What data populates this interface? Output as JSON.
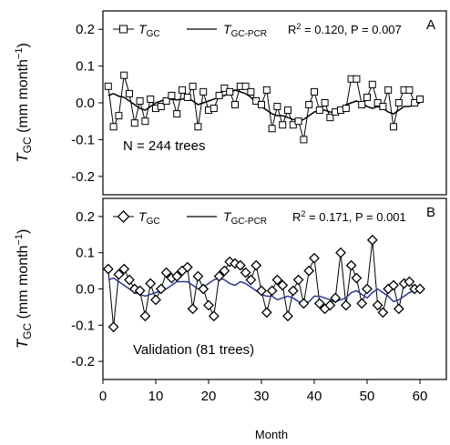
{
  "chart_data": {
    "type": "line",
    "xlabel": "Month",
    "x_ticks": [
      "0",
      "10",
      "20",
      "30",
      "40",
      "50",
      "60"
    ],
    "xlim": [
      0,
      65
    ],
    "panels": [
      {
        "panel_label": "A",
        "ylabel_main": "T",
        "ylabel_sub": "GC",
        "ylabel_units": "(mm month",
        "ylabel_exp": "−1",
        "ylabel_close": ")",
        "y_ticks": [
          "0.2",
          "0.1",
          "0.0",
          "-0.1",
          "-0.2"
        ],
        "ylim": [
          -0.25,
          0.25
        ],
        "legend_marker_main": "T",
        "legend_marker_sub": "GC",
        "legend_line_main": "T",
        "legend_line_sub": "GC-PCR",
        "stats_r": "R",
        "stats_r_exp": "2",
        "stats_rest": " = 0.120, P = 0.007",
        "annotation": "N = 244 trees",
        "line_color": "#000000",
        "series": [
          {
            "name": "TGC",
            "marker": "square",
            "x": [
              1,
              2,
              3,
              4,
              5,
              6,
              7,
              8,
              9,
              10,
              11,
              12,
              13,
              14,
              15,
              16,
              17,
              18,
              19,
              20,
              21,
              22,
              23,
              24,
              25,
              26,
              27,
              28,
              29,
              30,
              31,
              32,
              33,
              34,
              35,
              36,
              37,
              38,
              39,
              40,
              41,
              42,
              43,
              44,
              45,
              46,
              47,
              48,
              49,
              50,
              51,
              52,
              53,
              54,
              55,
              56,
              57,
              58,
              59,
              60
            ],
            "values": [
              0.045,
              -0.065,
              -0.035,
              0.075,
              0.025,
              -0.055,
              0.005,
              -0.05,
              0.01,
              -0.015,
              -0.01,
              0.005,
              0.02,
              -0.03,
              0.035,
              0.015,
              0.045,
              -0.065,
              0.03,
              -0.02,
              -0.015,
              0.02,
              0.04,
              0.03,
              -0.005,
              0.045,
              0.045,
              0.03,
              0.005,
              -0.005,
              0.035,
              -0.07,
              -0.01,
              -0.06,
              -0.02,
              -0.06,
              -0.05,
              -0.1,
              -0.005,
              0.03,
              -0.02,
              0.0,
              -0.04,
              -0.025,
              -0.02,
              -0.015,
              0.065,
              0.065,
              -0.005,
              0.015,
              0.05,
              0.0,
              -0.01,
              0.035,
              -0.065,
              0.0,
              0.035,
              0.035,
              0.0,
              0.01
            ]
          },
          {
            "name": "TGC-PCR",
            "x": [
              1,
              2,
              3,
              4,
              5,
              6,
              7,
              8,
              9,
              10,
              11,
              12,
              13,
              14,
              15,
              16,
              17,
              18,
              19,
              20,
              21,
              22,
              23,
              24,
              25,
              26,
              27,
              28,
              29,
              30,
              31,
              32,
              33,
              34,
              35,
              36,
              37,
              38,
              39,
              40,
              41,
              42,
              43,
              44,
              45,
              46,
              47,
              48,
              49,
              50,
              51,
              52,
              53,
              54,
              55,
              56,
              57,
              58,
              59,
              60
            ],
            "values": [
              0.02,
              0.025,
              0.018,
              0.015,
              0.005,
              -0.005,
              -0.015,
              -0.02,
              -0.01,
              0.0,
              0.005,
              0.01,
              0.01,
              0.008,
              0.01,
              0.015,
              0.005,
              -0.005,
              0.0,
              0.005,
              0.01,
              0.015,
              0.02,
              0.025,
              0.035,
              0.03,
              0.025,
              0.015,
              0.0,
              -0.01,
              -0.02,
              -0.03,
              -0.035,
              -0.035,
              -0.04,
              -0.045,
              -0.05,
              -0.045,
              -0.035,
              -0.025,
              -0.02,
              -0.02,
              -0.025,
              -0.025,
              -0.02,
              -0.005,
              0.0,
              0.005,
              0.0,
              -0.01,
              -0.015,
              -0.01,
              -0.015,
              -0.025,
              -0.03,
              -0.02,
              -0.01,
              -0.01,
              -0.005,
              0.0
            ]
          }
        ]
      },
      {
        "panel_label": "B",
        "ylabel_main": "T",
        "ylabel_sub": "GC",
        "ylabel_units": "(mm month",
        "ylabel_exp": "−1",
        "ylabel_close": ")",
        "y_ticks": [
          "0.2",
          "0.1",
          "0.0",
          "-0.1",
          "-0.2"
        ],
        "ylim": [
          -0.25,
          0.25
        ],
        "legend_marker_main": "T",
        "legend_marker_sub": "GC",
        "legend_line_main": "T",
        "legend_line_sub": "GC-PCR",
        "stats_r": "R",
        "stats_r_exp": "2",
        "stats_rest": " = 0.171, P = 0.001",
        "annotation": "Validation (81 trees)",
        "line_color": "#2b3990",
        "series": [
          {
            "name": "TGC",
            "marker": "diamond",
            "x": [
              1,
              2,
              3,
              4,
              5,
              6,
              7,
              8,
              9,
              10,
              11,
              12,
              13,
              14,
              15,
              16,
              17,
              18,
              19,
              20,
              21,
              22,
              23,
              24,
              25,
              26,
              27,
              28,
              29,
              30,
              31,
              32,
              33,
              34,
              35,
              36,
              37,
              38,
              39,
              40,
              41,
              42,
              43,
              44,
              45,
              46,
              47,
              48,
              49,
              50,
              51,
              52,
              53,
              54,
              55,
              56,
              57,
              58,
              59,
              60
            ],
            "values": [
              0.055,
              -0.105,
              0.04,
              0.055,
              0.025,
              0.0,
              -0.005,
              -0.075,
              0.015,
              -0.03,
              0.0,
              0.045,
              0.03,
              0.035,
              0.05,
              0.06,
              -0.055,
              0.035,
              0.0,
              -0.045,
              -0.075,
              0.035,
              0.05,
              0.075,
              0.07,
              0.065,
              0.045,
              0.025,
              0.065,
              -0.005,
              -0.065,
              -0.005,
              0.025,
              0.01,
              -0.075,
              -0.005,
              0.025,
              -0.04,
              0.05,
              0.085,
              -0.04,
              -0.055,
              -0.045,
              -0.025,
              0.1,
              -0.045,
              0.065,
              0.03,
              -0.04,
              0.0,
              0.135,
              -0.045,
              -0.065,
              0.0,
              0.01,
              -0.055,
              0.015,
              0.02,
              0.0,
              0.0
            ]
          },
          {
            "name": "TGC-PCR",
            "x": [
              1,
              2,
              3,
              4,
              5,
              6,
              7,
              8,
              9,
              10,
              11,
              12,
              13,
              14,
              15,
              16,
              17,
              18,
              19,
              20,
              21,
              22,
              23,
              24,
              25,
              26,
              27,
              28,
              29,
              30,
              31,
              32,
              33,
              34,
              35,
              36,
              37,
              38,
              39,
              40,
              41,
              42,
              43,
              44,
              45,
              46,
              47,
              48,
              49,
              50,
              51,
              52,
              53,
              54,
              55,
              56,
              57,
              58,
              59,
              60
            ],
            "values": [
              0.025,
              0.03,
              0.02,
              0.01,
              0.0,
              -0.01,
              -0.015,
              -0.02,
              -0.015,
              -0.01,
              -0.005,
              0.0,
              0.01,
              0.02,
              0.02,
              0.02,
              0.01,
              0.0,
              0.005,
              0.015,
              0.025,
              0.03,
              0.025,
              0.015,
              0.01,
              0.02,
              0.015,
              0.005,
              -0.005,
              -0.015,
              -0.02,
              -0.02,
              -0.03,
              -0.025,
              -0.02,
              -0.025,
              -0.035,
              -0.04,
              -0.035,
              -0.02,
              -0.02,
              -0.025,
              -0.03,
              -0.035,
              -0.03,
              -0.025,
              -0.01,
              -0.005,
              -0.015,
              -0.025,
              -0.01,
              0.0,
              -0.01,
              -0.02,
              -0.035,
              -0.03,
              -0.02,
              -0.01,
              -0.005,
              0.0
            ]
          }
        ]
      }
    ]
  }
}
